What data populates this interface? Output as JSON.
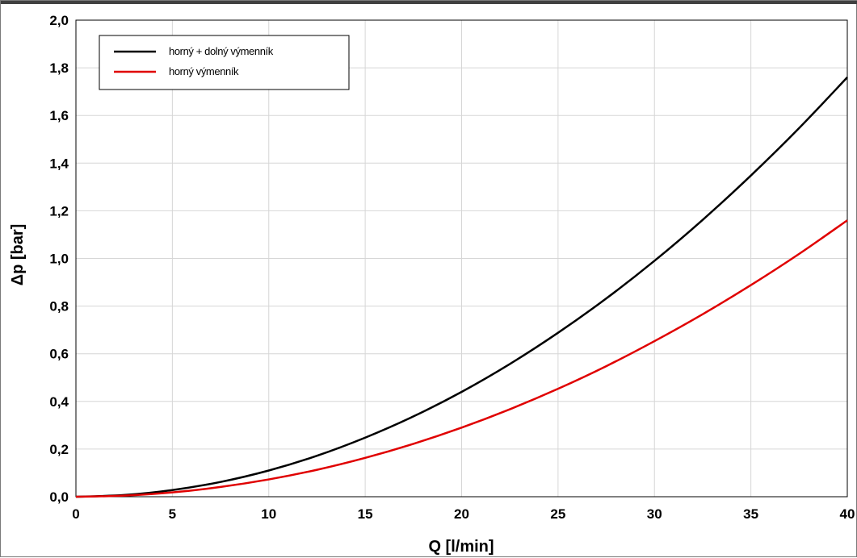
{
  "chart_data": {
    "type": "line",
    "title": "",
    "xlabel": "Q [l/min]",
    "ylabel": "Δp [bar]",
    "xlim": [
      0,
      40
    ],
    "ylim": [
      0,
      2.0
    ],
    "x_ticks": [
      "0",
      "5",
      "10",
      "15",
      "20",
      "25",
      "30",
      "35",
      "40"
    ],
    "y_ticks": [
      "0,0",
      "0,2",
      "0,4",
      "0,6",
      "0,8",
      "1,0",
      "1,2",
      "1,4",
      "1,6",
      "1,8",
      "2,0"
    ],
    "grid": true,
    "legend_position": "top-left",
    "x": [
      0,
      2.5,
      5,
      7.5,
      10,
      12.5,
      15,
      17.5,
      20,
      22.5,
      25,
      27.5,
      30,
      32.5,
      35,
      37.5,
      40
    ],
    "series": [
      {
        "name": "horný + dolný výmenník",
        "color": "#000000",
        "values": [
          0,
          0.007,
          0.028,
          0.062,
          0.11,
          0.172,
          0.248,
          0.337,
          0.44,
          0.557,
          0.688,
          0.832,
          0.99,
          1.162,
          1.348,
          1.547,
          1.76
        ]
      },
      {
        "name": "horný výmenník",
        "color": "#e00000",
        "values": [
          0,
          0.0045,
          0.018,
          0.041,
          0.0725,
          0.113,
          0.163,
          0.222,
          0.29,
          0.367,
          0.453,
          0.548,
          0.653,
          0.766,
          0.888,
          1.019,
          1.16
        ]
      }
    ]
  }
}
